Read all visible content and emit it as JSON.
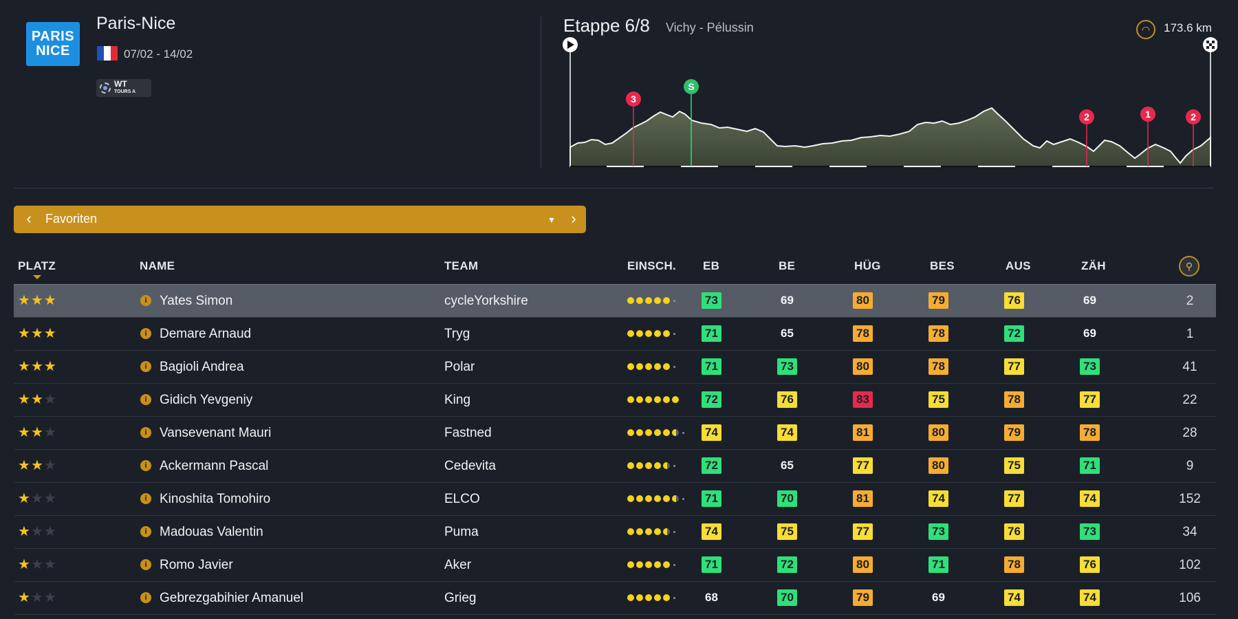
{
  "race": {
    "logo_line1": "PARIS",
    "logo_line2": "NICE",
    "title": "Paris-Nice",
    "dates": "07/02 - 14/02",
    "category_badge": "WT",
    "category_sub": "TOURS A"
  },
  "stage": {
    "title": "Etappe 6/8",
    "route": "Vichy - Pélussin",
    "distance": "173.6 km",
    "markers": [
      "3",
      "S",
      "2",
      "1",
      "2"
    ]
  },
  "selector": {
    "label": "Favoriten",
    "prev_icon": "chevron-left-icon",
    "next_icon": "chevron-right-icon",
    "dropdown_icon": "chevron-down-icon"
  },
  "table": {
    "headers": {
      "platz": "PLATZ",
      "name": "NAME",
      "team": "TEAM",
      "einsch": "EINSCH.",
      "eb": "EB",
      "be": "BE",
      "hug": "HÜG",
      "bes": "BES",
      "aus": "AUS",
      "zah": "ZÄH"
    },
    "rows": [
      {
        "stars": 3,
        "name": "Yates Simon",
        "team": "cycleYorkshire",
        "dots": 5,
        "eb": "73",
        "be": "69",
        "hug": "80",
        "bes": "79",
        "aus": "76",
        "zah": "69",
        "rank": "2"
      },
      {
        "stars": 3,
        "name": "Demare Arnaud",
        "team": "Tryg",
        "dots": 5,
        "eb": "71",
        "be": "65",
        "hug": "78",
        "bes": "78",
        "aus": "72",
        "zah": "69",
        "rank": "1"
      },
      {
        "stars": 3,
        "name": "Bagioli Andrea",
        "team": "Polar",
        "dots": 5,
        "eb": "71",
        "be": "73",
        "hug": "80",
        "bes": "78",
        "aus": "77",
        "zah": "73",
        "rank": "41"
      },
      {
        "stars": 2,
        "name": "Gidich Yevgeniy",
        "team": "King",
        "dots": 6,
        "eb": "72",
        "be": "76",
        "hug": "83",
        "bes": "75",
        "aus": "78",
        "zah": "77",
        "rank": "22"
      },
      {
        "stars": 2,
        "name": "Vansevenant Mauri",
        "team": "Fastned",
        "dots": 5.5,
        "eb": "74",
        "be": "74",
        "hug": "81",
        "bes": "80",
        "aus": "79",
        "zah": "78",
        "rank": "28"
      },
      {
        "stars": 2,
        "name": "Ackermann Pascal",
        "team": "Cedevita",
        "dots": 4.5,
        "eb": "72",
        "be": "65",
        "hug": "77",
        "bes": "80",
        "aus": "75",
        "zah": "71",
        "rank": "9"
      },
      {
        "stars": 1,
        "name": "Kinoshita Tomohiro",
        "team": "ELCO",
        "dots": 5.5,
        "eb": "71",
        "be": "70",
        "hug": "81",
        "bes": "74",
        "aus": "77",
        "zah": "74",
        "rank": "152"
      },
      {
        "stars": 1,
        "name": "Madouas Valentin",
        "team": "Puma",
        "dots": 4.5,
        "eb": "74",
        "be": "75",
        "hug": "77",
        "bes": "73",
        "aus": "76",
        "zah": "73",
        "rank": "34"
      },
      {
        "stars": 1,
        "name": "Romo Javier",
        "team": "Aker",
        "dots": 5,
        "eb": "71",
        "be": "72",
        "hug": "80",
        "bes": "71",
        "aus": "78",
        "zah": "76",
        "rank": "102"
      },
      {
        "stars": 1,
        "name": "Gebrezgabihier Amanuel",
        "team": "Grieg",
        "dots": 5,
        "eb": "68",
        "be": "70",
        "hug": "79",
        "bes": "69",
        "aus": "74",
        "zah": "74",
        "rank": "106"
      }
    ]
  },
  "colors": {
    "background": "#1b2028",
    "accent": "#c8911e",
    "stat_green": "#2fe07a",
    "stat_yellow": "#f7dd35",
    "stat_orange": "#f6ac32",
    "stat_red": "#e8294f"
  }
}
